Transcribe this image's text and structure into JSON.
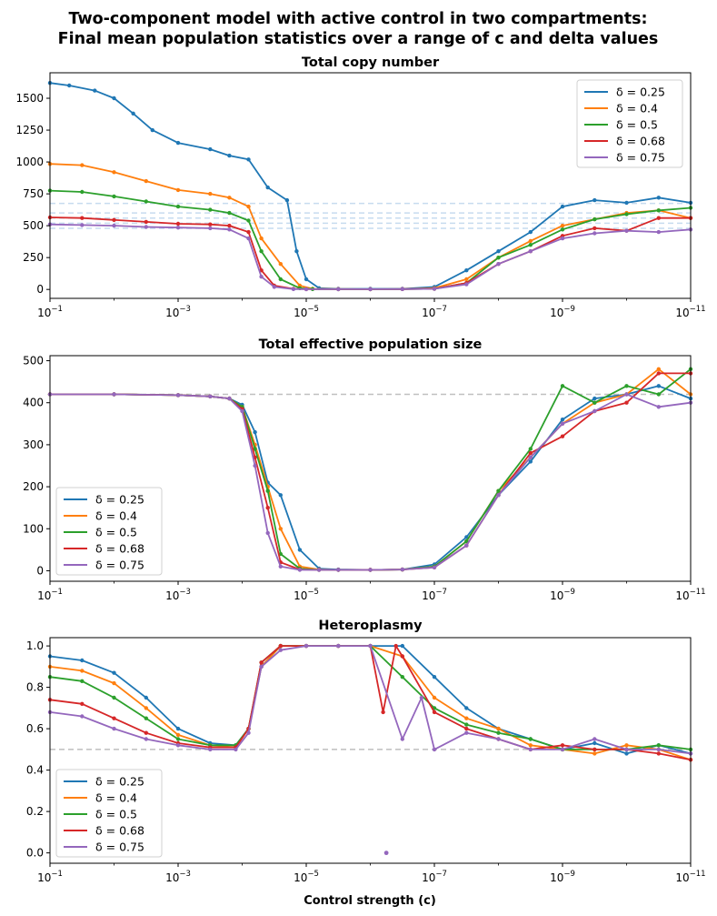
{
  "figure": {
    "title_line1": "Two-component model with active control in two compartments:",
    "title_line2": "Final mean population statistics over a range of c and delta values",
    "xlabel": "Control strength (c)"
  },
  "chart_data": [
    {
      "type": "line",
      "title": "Total copy number",
      "x_scale": "log-reversed",
      "xlim": [
        0.1,
        1e-11
      ],
      "ylim": [
        -70,
        1700
      ],
      "yticks": [
        0,
        250,
        500,
        750,
        1000,
        1250,
        1500
      ],
      "yticks_labels": [
        "0",
        "250",
        "500",
        "750",
        "1000",
        "1250",
        "1500"
      ],
      "xticks_labels": [
        [
          "10",
          "−1"
        ],
        [
          "10",
          "−3"
        ],
        [
          "10",
          "−5"
        ],
        [
          "10",
          "−7"
        ],
        [
          "10",
          "−9"
        ],
        [
          "10",
          "−11"
        ]
      ],
      "legend": "upper-right",
      "reference_lines": [
        480,
        520,
        560,
        600,
        675
      ],
      "series": [
        {
          "name": "δ = 0.25",
          "color": "#1f77b4",
          "x_exp": [
            -1,
            -1.3,
            -1.7,
            -2,
            -2.3,
            -2.6,
            -3,
            -3.5,
            -3.8,
            -4.1,
            -4.4,
            -4.7,
            -4.85,
            -5,
            -5.2,
            -5.5,
            -6,
            -6.5,
            -7,
            -7.5,
            -8,
            -8.5,
            -9,
            -9.5,
            -10,
            -10.5,
            -11
          ],
          "y": [
            1620,
            1600,
            1560,
            1500,
            1380,
            1250,
            1150,
            1100,
            1050,
            1020,
            800,
            700,
            300,
            80,
            10,
            5,
            5,
            5,
            20,
            150,
            300,
            450,
            650,
            700,
            680,
            720,
            680
          ]
        },
        {
          "name": "δ = 0.4",
          "color": "#ff7f0e",
          "x_exp": [
            -1,
            -1.5,
            -2,
            -2.5,
            -3,
            -3.5,
            -3.8,
            -4.1,
            -4.3,
            -4.6,
            -4.9,
            -5.1,
            -5.5,
            -6,
            -6.5,
            -7,
            -7.5,
            -8,
            -8.5,
            -9,
            -9.5,
            -10,
            -10.5,
            -11
          ],
          "y": [
            985,
            975,
            920,
            850,
            780,
            750,
            720,
            650,
            400,
            200,
            30,
            5,
            3,
            2,
            3,
            10,
            80,
            250,
            380,
            500,
            550,
            600,
            620,
            560
          ]
        },
        {
          "name": "δ = 0.5",
          "color": "#2ca02c",
          "x_exp": [
            -1,
            -1.5,
            -2,
            -2.5,
            -3,
            -3.5,
            -3.8,
            -4.1,
            -4.3,
            -4.6,
            -4.9,
            -5.1,
            -5.5,
            -6,
            -6.5,
            -7,
            -7.5,
            -8,
            -8.5,
            -9,
            -9.5,
            -10,
            -10.5,
            -11
          ],
          "y": [
            775,
            765,
            730,
            690,
            650,
            625,
            600,
            540,
            300,
            80,
            10,
            3,
            2,
            2,
            3,
            5,
            50,
            250,
            350,
            470,
            550,
            590,
            620,
            640
          ]
        },
        {
          "name": "δ = 0.68",
          "color": "#d62728",
          "x_exp": [
            -1,
            -1.5,
            -2,
            -2.5,
            -3,
            -3.5,
            -3.8,
            -4.1,
            -4.3,
            -4.5,
            -4.8,
            -5,
            -5.5,
            -6,
            -6.5,
            -7,
            -7.5,
            -8,
            -8.5,
            -9,
            -9.5,
            -10,
            -10.5,
            -11
          ],
          "y": [
            565,
            560,
            545,
            530,
            515,
            510,
            500,
            450,
            150,
            30,
            5,
            2,
            2,
            2,
            3,
            5,
            50,
            200,
            300,
            420,
            480,
            460,
            560,
            560
          ]
        },
        {
          "name": "δ = 0.75",
          "color": "#9467bd",
          "x_exp": [
            -1,
            -1.5,
            -2,
            -2.5,
            -3,
            -3.5,
            -3.8,
            -4.1,
            -4.3,
            -4.5,
            -4.8,
            -5,
            -5.5,
            -6,
            -6.5,
            -7,
            -7.5,
            -8,
            -8.5,
            -9,
            -9.5,
            -10,
            -10.5,
            -11
          ],
          "y": [
            510,
            505,
            500,
            490,
            485,
            480,
            470,
            400,
            100,
            20,
            3,
            2,
            2,
            2,
            3,
            5,
            40,
            200,
            300,
            400,
            440,
            460,
            450,
            470
          ]
        }
      ]
    },
    {
      "type": "line",
      "title": "Total effective population size",
      "x_scale": "log-reversed",
      "xlim": [
        0.1,
        1e-11
      ],
      "ylim": [
        -25,
        512
      ],
      "yticks": [
        0,
        100,
        200,
        300,
        400,
        500
      ],
      "yticks_labels": [
        "0",
        "100",
        "200",
        "300",
        "400",
        "500"
      ],
      "xticks_labels": [
        [
          "10",
          "−1"
        ],
        [
          "10",
          "−3"
        ],
        [
          "10",
          "−5"
        ],
        [
          "10",
          "−7"
        ],
        [
          "10",
          "−9"
        ],
        [
          "10",
          "−11"
        ]
      ],
      "legend": "lower-left",
      "reference_lines": [
        420
      ],
      "series": [
        {
          "name": "δ = 0.25",
          "color": "#1f77b4",
          "x_exp": [
            -1,
            -2,
            -3,
            -3.5,
            -3.8,
            -4,
            -4.2,
            -4.4,
            -4.6,
            -4.9,
            -5.2,
            -5.5,
            -6,
            -6.5,
            -7,
            -7.5,
            -8,
            -8.5,
            -9,
            -9.5,
            -10,
            -10.5,
            -11
          ],
          "y": [
            420,
            420,
            418,
            415,
            410,
            395,
            330,
            210,
            180,
            50,
            5,
            3,
            2,
            3,
            15,
            80,
            180,
            260,
            360,
            410,
            420,
            440,
            410
          ]
        },
        {
          "name": "δ = 0.4",
          "color": "#ff7f0e",
          "x_exp": [
            -1,
            -2,
            -3,
            -3.5,
            -3.8,
            -4,
            -4.2,
            -4.4,
            -4.6,
            -4.9,
            -5.2,
            -5.5,
            -6,
            -6.5,
            -7,
            -7.5,
            -8,
            -8.5,
            -9,
            -9.5,
            -10,
            -10.5,
            -11
          ],
          "y": [
            420,
            420,
            418,
            415,
            410,
            390,
            300,
            200,
            100,
            10,
            3,
            2,
            2,
            3,
            10,
            70,
            190,
            270,
            350,
            400,
            420,
            480,
            420
          ]
        },
        {
          "name": "δ = 0.5",
          "color": "#2ca02c",
          "x_exp": [
            -1,
            -2,
            -3,
            -3.5,
            -3.8,
            -4,
            -4.2,
            -4.4,
            -4.6,
            -4.9,
            -5.2,
            -5.5,
            -6,
            -6.5,
            -7,
            -7.5,
            -8,
            -8.5,
            -9,
            -9.5,
            -10,
            -10.5,
            -11
          ],
          "y": [
            420,
            420,
            418,
            415,
            410,
            390,
            290,
            190,
            40,
            5,
            2,
            2,
            2,
            3,
            10,
            70,
            190,
            290,
            440,
            400,
            440,
            420,
            480
          ]
        },
        {
          "name": "δ = 0.68",
          "color": "#d62728",
          "x_exp": [
            -1,
            -2,
            -3,
            -3.5,
            -3.8,
            -4,
            -4.2,
            -4.4,
            -4.6,
            -4.9,
            -5.2,
            -5.5,
            -6,
            -6.5,
            -7,
            -7.5,
            -8,
            -8.5,
            -9,
            -9.5,
            -10,
            -10.5,
            -11
          ],
          "y": [
            420,
            420,
            418,
            415,
            410,
            385,
            270,
            150,
            20,
            3,
            2,
            2,
            2,
            3,
            8,
            60,
            180,
            280,
            320,
            380,
            400,
            470,
            470
          ]
        },
        {
          "name": "δ = 0.75",
          "color": "#9467bd",
          "x_exp": [
            -1,
            -2,
            -3,
            -3.5,
            -3.8,
            -4,
            -4.2,
            -4.4,
            -4.6,
            -4.9,
            -5.2,
            -5.5,
            -6,
            -6.5,
            -7,
            -7.5,
            -8,
            -8.5,
            -9,
            -9.5,
            -10,
            -10.5,
            -11
          ],
          "y": [
            420,
            420,
            418,
            415,
            410,
            380,
            250,
            90,
            10,
            2,
            2,
            2,
            2,
            3,
            8,
            60,
            180,
            270,
            350,
            380,
            420,
            390,
            400
          ]
        }
      ]
    },
    {
      "type": "line",
      "title": "Heteroplasmy",
      "x_scale": "log-reversed",
      "xlim": [
        0.1,
        1e-11
      ],
      "ylim": [
        -0.05,
        1.04
      ],
      "yticks": [
        0,
        0.2,
        0.4,
        0.6,
        0.8,
        1.0
      ],
      "yticks_labels": [
        "0.0",
        "0.2",
        "0.4",
        "0.6",
        "0.8",
        "1.0"
      ],
      "xticks_labels": [
        [
          "10",
          "−1"
        ],
        [
          "10",
          "−3"
        ],
        [
          "10",
          "−5"
        ],
        [
          "10",
          "−7"
        ],
        [
          "10",
          "−9"
        ],
        [
          "10",
          "−11"
        ]
      ],
      "legend": "lower-left",
      "reference_lines": [
        0.5
      ],
      "series": [
        {
          "name": "δ = 0.25",
          "color": "#1f77b4",
          "x_exp": [
            -1,
            -1.5,
            -2,
            -2.5,
            -3,
            -3.5,
            -3.9,
            -4.1,
            -4.3,
            -4.6,
            -5,
            -5.5,
            -6,
            -6.5,
            -7,
            -7.5,
            -8,
            -8.5,
            -9,
            -9.5,
            -10,
            -10.5,
            -11
          ],
          "y": [
            0.95,
            0.93,
            0.87,
            0.75,
            0.6,
            0.53,
            0.52,
            0.6,
            0.9,
            1.0,
            1.0,
            1.0,
            1.0,
            1.0,
            0.85,
            0.7,
            0.6,
            0.55,
            0.5,
            0.53,
            0.48,
            0.52,
            0.48
          ]
        },
        {
          "name": "δ = 0.4",
          "color": "#ff7f0e",
          "x_exp": [
            -1,
            -1.5,
            -2,
            -2.5,
            -3,
            -3.5,
            -3.9,
            -4.1,
            -4.3,
            -4.6,
            -5,
            -5.5,
            -6,
            -6.5,
            -7,
            -7.5,
            -8,
            -8.5,
            -9,
            -9.5,
            -10,
            -10.5,
            -11
          ],
          "y": [
            0.9,
            0.88,
            0.82,
            0.7,
            0.57,
            0.52,
            0.51,
            0.6,
            0.9,
            1.0,
            1.0,
            1.0,
            1.0,
            0.95,
            0.75,
            0.65,
            0.6,
            0.52,
            0.5,
            0.48,
            0.52,
            0.5,
            0.45
          ]
        },
        {
          "name": "δ = 0.5",
          "color": "#2ca02c",
          "x_exp": [
            -1,
            -1.5,
            -2,
            -2.5,
            -3,
            -3.5,
            -3.9,
            -4.1,
            -4.3,
            -4.6,
            -5,
            -5.5,
            -6,
            -6.5,
            -7,
            -7.5,
            -8,
            -8.5,
            -9,
            -9.5,
            -10,
            -10.5,
            -11
          ],
          "y": [
            0.85,
            0.83,
            0.75,
            0.65,
            0.55,
            0.52,
            0.52,
            0.6,
            0.92,
            1.0,
            1.0,
            1.0,
            1.0,
            0.85,
            0.7,
            0.62,
            0.58,
            0.55,
            0.5,
            0.5,
            0.5,
            0.52,
            0.5
          ]
        },
        {
          "name": "δ = 0.68",
          "color": "#d62728",
          "x_exp": [
            -1,
            -1.5,
            -2,
            -2.5,
            -3,
            -3.5,
            -3.9,
            -4.1,
            -4.3,
            -4.6,
            -5,
            -5.5,
            -6,
            -6.2,
            -6.4,
            -6.5,
            -7,
            -7.5,
            -8,
            -8.5,
            -9,
            -9.5,
            -10,
            -10.5,
            -11
          ],
          "y": [
            0.74,
            0.72,
            0.65,
            0.58,
            0.53,
            0.51,
            0.51,
            0.6,
            0.92,
            1.0,
            1.0,
            1.0,
            1.0,
            0.68,
            1.0,
            0.95,
            0.68,
            0.6,
            0.55,
            0.5,
            0.52,
            0.5,
            0.5,
            0.48,
            0.45
          ]
        },
        {
          "name": "δ = 0.75",
          "color": "#9467bd",
          "x_exp": [
            -1,
            -1.5,
            -2,
            -2.5,
            -3,
            -3.5,
            -3.9,
            -4.1,
            -4.3,
            -4.6,
            -5,
            -5.5,
            -6,
            -6.5,
            -6.8,
            -7,
            -7.5,
            -8,
            -8.5,
            -9,
            -9.5,
            -10,
            -10.5,
            -11
          ],
          "y": [
            0.68,
            0.66,
            0.6,
            0.55,
            0.52,
            0.5,
            0.5,
            0.58,
            0.9,
            0.98,
            1.0,
            1.0,
            1.0,
            0.55,
            0.75,
            0.5,
            0.58,
            0.55,
            0.5,
            0.5,
            0.55,
            0.5,
            0.5,
            0.48
          ]
        }
      ],
      "outlier_points": [
        {
          "x_exp": -6.25,
          "y": 0.0,
          "color": "#9467bd"
        }
      ]
    }
  ]
}
